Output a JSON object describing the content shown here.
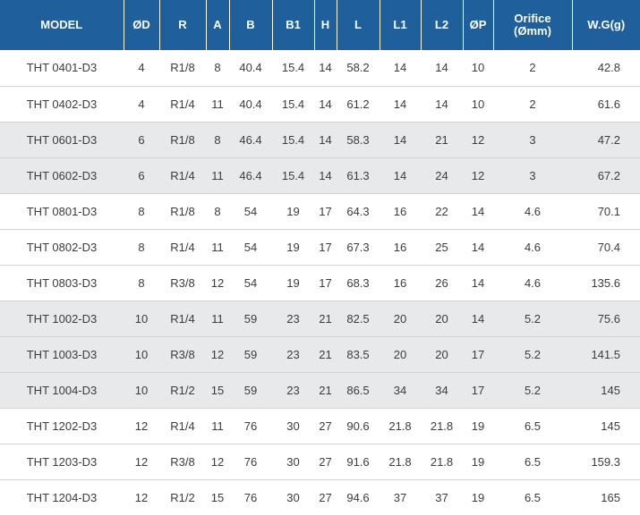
{
  "headers": {
    "model": "MODEL",
    "od": "ØD",
    "r": "R",
    "a": "A",
    "b": "B",
    "b1": "B1",
    "h": "H",
    "l": "L",
    "l1": "L1",
    "l2": "L2",
    "op": "ØP",
    "orifice_line1": "Orifice",
    "orifice_line2": "(Ømm)",
    "wg": "W.G(g)"
  },
  "colors": {
    "header_bg": "#1f5f9b",
    "header_text": "#ffffff",
    "shaded_row": "#e8e9ea",
    "row_divider": "#d2d2d2"
  },
  "rows": [
    {
      "model": "THT 0401-D3",
      "od": "4",
      "r": "R1/8",
      "a": "8",
      "b": "40.4",
      "b1": "15.4",
      "h": "14",
      "l": "58.2",
      "l1": "14",
      "l2": "14",
      "op": "10",
      "orifice": "2",
      "wg": "42.8",
      "shaded": false
    },
    {
      "model": "THT 0402-D3",
      "od": "4",
      "r": "R1/4",
      "a": "11",
      "b": "40.4",
      "b1": "15.4",
      "h": "14",
      "l": "61.2",
      "l1": "14",
      "l2": "14",
      "op": "10",
      "orifice": "2",
      "wg": "61.6",
      "shaded": false
    },
    {
      "model": "THT 0601-D3",
      "od": "6",
      "r": "R1/8",
      "a": "8",
      "b": "46.4",
      "b1": "15.4",
      "h": "14",
      "l": "58.3",
      "l1": "14",
      "l2": "21",
      "op": "12",
      "orifice": "3",
      "wg": "47.2",
      "shaded": true
    },
    {
      "model": "THT 0602-D3",
      "od": "6",
      "r": "R1/4",
      "a": "11",
      "b": "46.4",
      "b1": "15.4",
      "h": "14",
      "l": "61.3",
      "l1": "14",
      "l2": "24",
      "op": "12",
      "orifice": "3",
      "wg": "67.2",
      "shaded": true
    },
    {
      "model": "THT 0801-D3",
      "od": "8",
      "r": "R1/8",
      "a": "8",
      "b": "54",
      "b1": "19",
      "h": "17",
      "l": "64.3",
      "l1": "16",
      "l2": "22",
      "op": "14",
      "orifice": "4.6",
      "wg": "70.1",
      "shaded": false
    },
    {
      "model": "THT 0802-D3",
      "od": "8",
      "r": "R1/4",
      "a": "11",
      "b": "54",
      "b1": "19",
      "h": "17",
      "l": "67.3",
      "l1": "16",
      "l2": "25",
      "op": "14",
      "orifice": "4.6",
      "wg": "70.4",
      "shaded": false
    },
    {
      "model": "THT 0803-D3",
      "od": "8",
      "r": "R3/8",
      "a": "12",
      "b": "54",
      "b1": "19",
      "h": "17",
      "l": "68.3",
      "l1": "16",
      "l2": "26",
      "op": "14",
      "orifice": "4.6",
      "wg": "135.6",
      "shaded": false
    },
    {
      "model": "THT 1002-D3",
      "od": "10",
      "r": "R1/4",
      "a": "11",
      "b": "59",
      "b1": "23",
      "h": "21",
      "l": "82.5",
      "l1": "20",
      "l2": "20",
      "op": "14",
      "orifice": "5.2",
      "wg": "75.6",
      "shaded": true
    },
    {
      "model": "THT 1003-D3",
      "od": "10",
      "r": "R3/8",
      "a": "12",
      "b": "59",
      "b1": "23",
      "h": "21",
      "l": "83.5",
      "l1": "20",
      "l2": "20",
      "op": "17",
      "orifice": "5.2",
      "wg": "141.5",
      "shaded": true
    },
    {
      "model": "THT 1004-D3",
      "od": "10",
      "r": "R1/2",
      "a": "15",
      "b": "59",
      "b1": "23",
      "h": "21",
      "l": "86.5",
      "l1": "34",
      "l2": "34",
      "op": "17",
      "orifice": "5.2",
      "wg": "145",
      "shaded": true
    },
    {
      "model": "THT 1202-D3",
      "od": "12",
      "r": "R1/4",
      "a": "11",
      "b": "76",
      "b1": "30",
      "h": "27",
      "l": "90.6",
      "l1": "21.8",
      "l2": "21.8",
      "op": "19",
      "orifice": "6.5",
      "wg": "145",
      "shaded": false
    },
    {
      "model": "THT 1203-D3",
      "od": "12",
      "r": "R3/8",
      "a": "12",
      "b": "76",
      "b1": "30",
      "h": "27",
      "l": "91.6",
      "l1": "21.8",
      "l2": "21.8",
      "op": "19",
      "orifice": "6.5",
      "wg": "159.3",
      "shaded": false
    },
    {
      "model": "THT 1204-D3",
      "od": "12",
      "r": "R1/2",
      "a": "15",
      "b": "76",
      "b1": "30",
      "h": "27",
      "l": "94.6",
      "l1": "37",
      "l2": "37",
      "op": "19",
      "orifice": "6.5",
      "wg": "165",
      "shaded": false
    }
  ]
}
